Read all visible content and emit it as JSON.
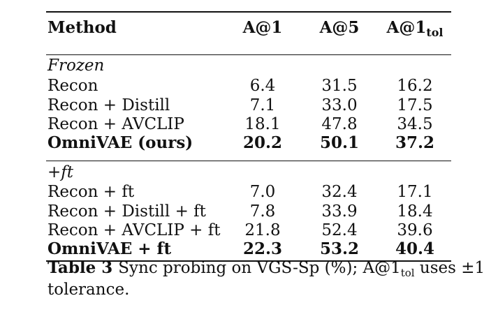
{
  "table": {
    "headers": {
      "method": "Method",
      "a1": "A@1",
      "a5": "A@5",
      "atol_base": "A@1",
      "atol_sub": "tol"
    },
    "sections": [
      {
        "label": "Frozen",
        "rows": [
          {
            "method": "Recon",
            "a1": "6.4",
            "a5": "31.5",
            "atol": "16.2",
            "bold": false
          },
          {
            "method": "Recon + Distill",
            "a1": "7.1",
            "a5": "33.0",
            "atol": "17.5",
            "bold": false
          },
          {
            "method": "Recon + AVCLIP",
            "a1": "18.1",
            "a5": "47.8",
            "atol": "34.5",
            "bold": false
          },
          {
            "method": "OmniVAE (ours)",
            "a1": "20.2",
            "a5": "50.1",
            "atol": "37.2",
            "bold": true
          }
        ]
      },
      {
        "label": "+ft",
        "rows": [
          {
            "method": "Recon + ft",
            "a1": "7.0",
            "a5": "32.4",
            "atol": "17.1",
            "bold": false
          },
          {
            "method": "Recon + Distill + ft",
            "a1": "7.8",
            "a5": "33.9",
            "atol": "18.4",
            "bold": false
          },
          {
            "method": "Recon + AVCLIP + ft",
            "a1": "21.8",
            "a5": "52.4",
            "atol": "39.6",
            "bold": false
          },
          {
            "method": "OmniVAE + ft",
            "a1": "22.3",
            "a5": "53.2",
            "atol": "40.4",
            "bold": true
          }
        ]
      }
    ]
  },
  "caption": {
    "label": "Table 3",
    "text_before": "Sync probing on VGS-Sp (%); A@1",
    "sub": "tol",
    "text_after": " uses ±1 tolerance."
  }
}
